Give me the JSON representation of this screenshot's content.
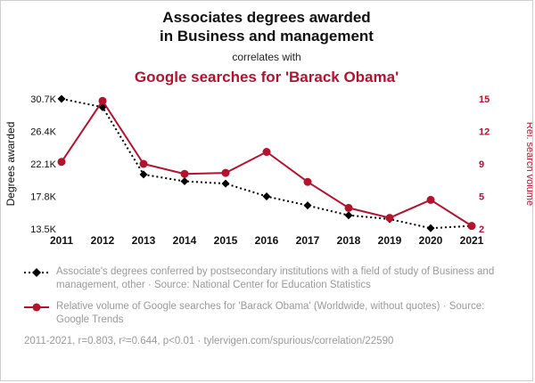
{
  "colors": {
    "accent": "#b5122e",
    "series_black": "#000000",
    "muted_text": "#9a9a9a"
  },
  "header": {
    "title_line1": "Associates degrees awarded",
    "title_line2": "in Business and management",
    "connector": "correlates with",
    "red_title": "Google searches for 'Barack Obama'"
  },
  "chart_data": {
    "type": "line",
    "x": [
      "2011",
      "2012",
      "2013",
      "2014",
      "2015",
      "2016",
      "2017",
      "2018",
      "2019",
      "2020",
      "2021"
    ],
    "left_axis": {
      "label": "Degrees awarded",
      "ticks": [
        "30.7K",
        "26.4K",
        "22.1K",
        "17.8K",
        "13.5K"
      ],
      "range": [
        13.5,
        30.7
      ]
    },
    "right_axis": {
      "label": "Rel. search volume",
      "ticks": [
        "15",
        "12",
        "9",
        "5",
        "2"
      ],
      "range": [
        2,
        15
      ]
    },
    "series": [
      {
        "name": "Associates degrees awarded",
        "axis": "left",
        "style": "dashed-diamond",
        "color": "#000000",
        "values": [
          30.7,
          29.6,
          20.7,
          19.8,
          19.5,
          17.8,
          16.6,
          15.3,
          14.8,
          13.6,
          13.9
        ]
      },
      {
        "name": "Google searches for Barack Obama",
        "axis": "right",
        "style": "solid-circle",
        "color": "#b5122e",
        "values": [
          8.7,
          14.8,
          8.5,
          7.5,
          7.6,
          9.7,
          6.7,
          4.1,
          3.1,
          4.9,
          2.3
        ]
      }
    ],
    "grid": false,
    "legend_position": "below"
  },
  "legend": {
    "series1": "Associate's degrees conferred by postsecondary institutions with a field of study of Business and management, other · Source: National Center for Education Statistics",
    "series2": "Relative volume of Google searches for 'Barack Obama' (Worldwide, without quotes) · Source: Google Trends"
  },
  "footer": {
    "text": "2011-2021, r=0.803, r²=0.644, p<0.01 · tylervigen.com/spurious/correlation/22590"
  }
}
